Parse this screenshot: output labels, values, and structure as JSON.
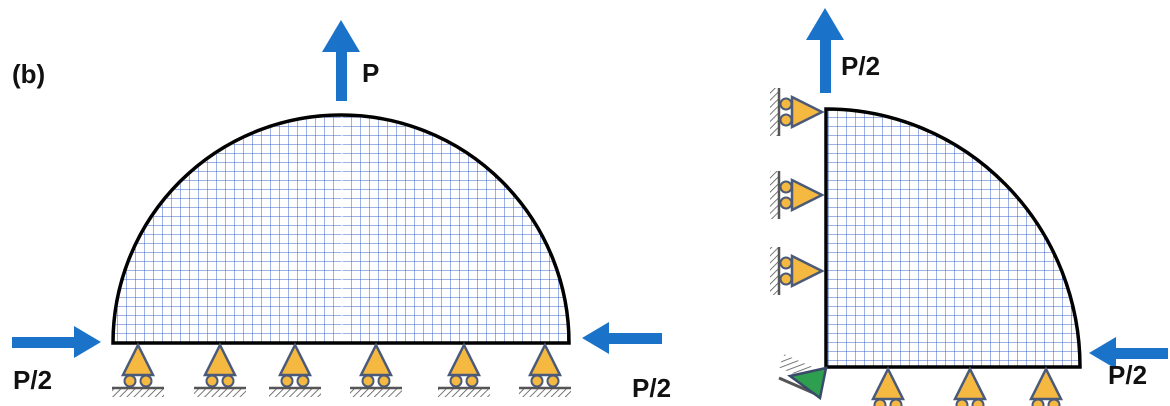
{
  "panel_label": "(b)",
  "left_panel": {
    "top_load_label": "P",
    "left_load_label": "P/2",
    "right_load_label": "P/2",
    "roller_support_count": 6
  },
  "right_panel": {
    "top_load_label": "P/2",
    "right_load_label": "P/2",
    "left_roller_support_count": 3,
    "bottom_roller_support_count": 3,
    "corner_support": "pin"
  },
  "colors": {
    "mesh": "#3d63c8",
    "outline": "#000000",
    "arrow": "#1a73c9",
    "support_fill": "#f5b942",
    "support_stroke": "#4a5a78",
    "pin_fill": "#2e9e4f",
    "hatch": "#555555"
  }
}
